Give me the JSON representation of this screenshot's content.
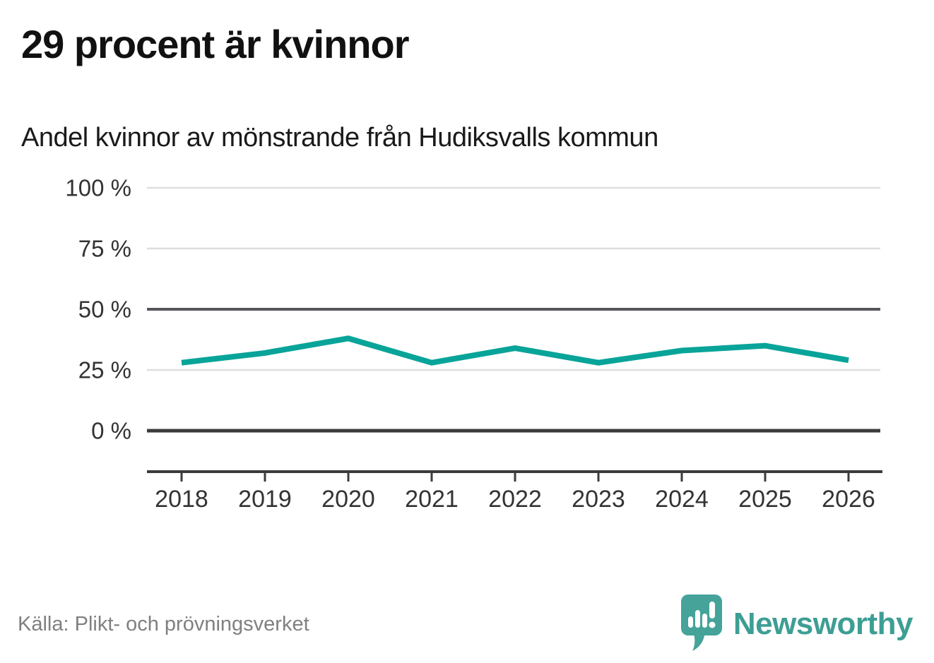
{
  "header": {
    "title": "29 procent är kvinnor",
    "subtitle": "Andel kvinnor av mönstrande från Hudiksvalls kommun"
  },
  "chart_data": {
    "type": "line",
    "title": "Andel kvinnor av mönstrande från Hudiksvalls kommun",
    "x": [
      2018,
      2019,
      2020,
      2021,
      2022,
      2023,
      2024,
      2025,
      2026
    ],
    "series": [
      {
        "name": "Andel kvinnor",
        "values": [
          28,
          32,
          38,
          28,
          34,
          28,
          33,
          35,
          29
        ]
      }
    ],
    "unit": "%",
    "xlabel": "",
    "ylabel": "",
    "ylim": [
      0,
      100
    ],
    "yticks": [
      0,
      25,
      50,
      75,
      100
    ],
    "ytick_suffix": " %",
    "grid": true,
    "legend": "none",
    "line_color": "#08a499"
  },
  "footer": {
    "source": "Källa: Plikt- och prövningsverket",
    "brand": "Newsworthy"
  },
  "colors": {
    "accent_teal": "#08a499",
    "logo_teal": "#45a39a",
    "brand_text_teal": "#3d9e94",
    "grid_light": "#dedede",
    "grid_mid": "#55565b",
    "grid_zero": "#3b3b3b",
    "axis_text": "#333333",
    "source_text": "#808080"
  }
}
